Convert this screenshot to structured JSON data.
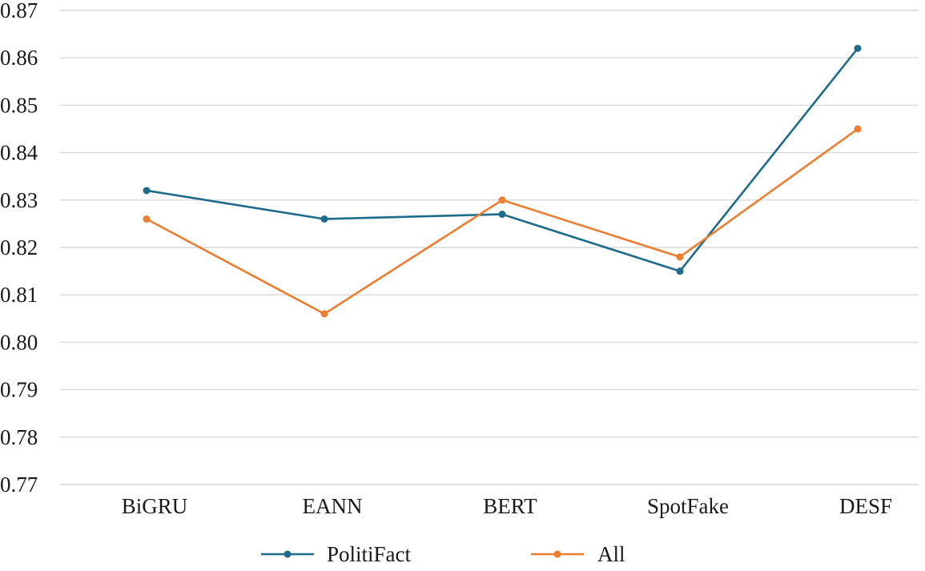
{
  "chart_data": {
    "type": "line",
    "title": "",
    "xlabel": "",
    "ylabel": "",
    "categories": [
      "BiGRU",
      "EANN",
      "BERT",
      "SpotFake",
      "DESF"
    ],
    "series": [
      {
        "name": "PolitiFact",
        "values": [
          0.832,
          0.826,
          0.827,
          0.815,
          0.862
        ],
        "color": "#1f6b8c"
      },
      {
        "name": "All",
        "values": [
          0.826,
          0.806,
          0.83,
          0.818,
          0.845
        ],
        "color": "#ed7d31"
      }
    ],
    "ylim": [
      0.77,
      0.87
    ],
    "yticks": [
      "0.77",
      "0.78",
      "0.79",
      "0.80",
      "0.81",
      "0.82",
      "0.83",
      "0.84",
      "0.85",
      "0.86",
      "0.87"
    ],
    "grid": true,
    "legend": "bottom"
  }
}
